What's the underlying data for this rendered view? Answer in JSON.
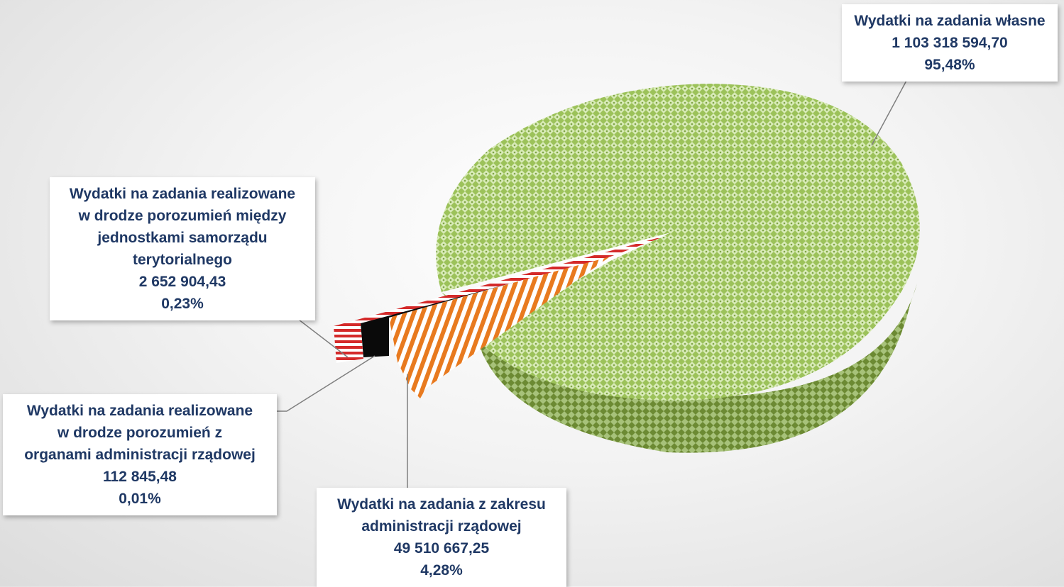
{
  "chart_data": {
    "type": "pie",
    "style": "3d-exploded",
    "legend": "none",
    "slices": [
      {
        "name_lines": [
          "Wydatki na zadania własne"
        ],
        "value": "1 103 318 594,70",
        "percent": "95,48%",
        "share": 95.48,
        "color": "#8db04f",
        "pattern": "diamond"
      },
      {
        "name_lines": [
          "Wydatki na zadania z zakresu",
          "administracji rządowej"
        ],
        "value": "49 510 667,25",
        "percent": "4,28%",
        "share": 4.28,
        "color": "#e87a1f",
        "pattern": "stripes"
      },
      {
        "name_lines": [
          "Wydatki na zadania realizowane",
          "w drodze porozumień z",
          "organami administracji rządowej"
        ],
        "value": "112 845,48",
        "percent": "0,01%",
        "share": 0.01,
        "color": "#000000",
        "pattern": "solid"
      },
      {
        "name_lines": [
          "Wydatki na zadania realizowane",
          "w drodze porozumień między",
          "jednostkami samorządu",
          "terytorialnego"
        ],
        "value": "2 652 904,43",
        "percent": "0,23%",
        "share": 0.23,
        "color": "#d42a2a",
        "pattern": "stripes"
      }
    ]
  }
}
